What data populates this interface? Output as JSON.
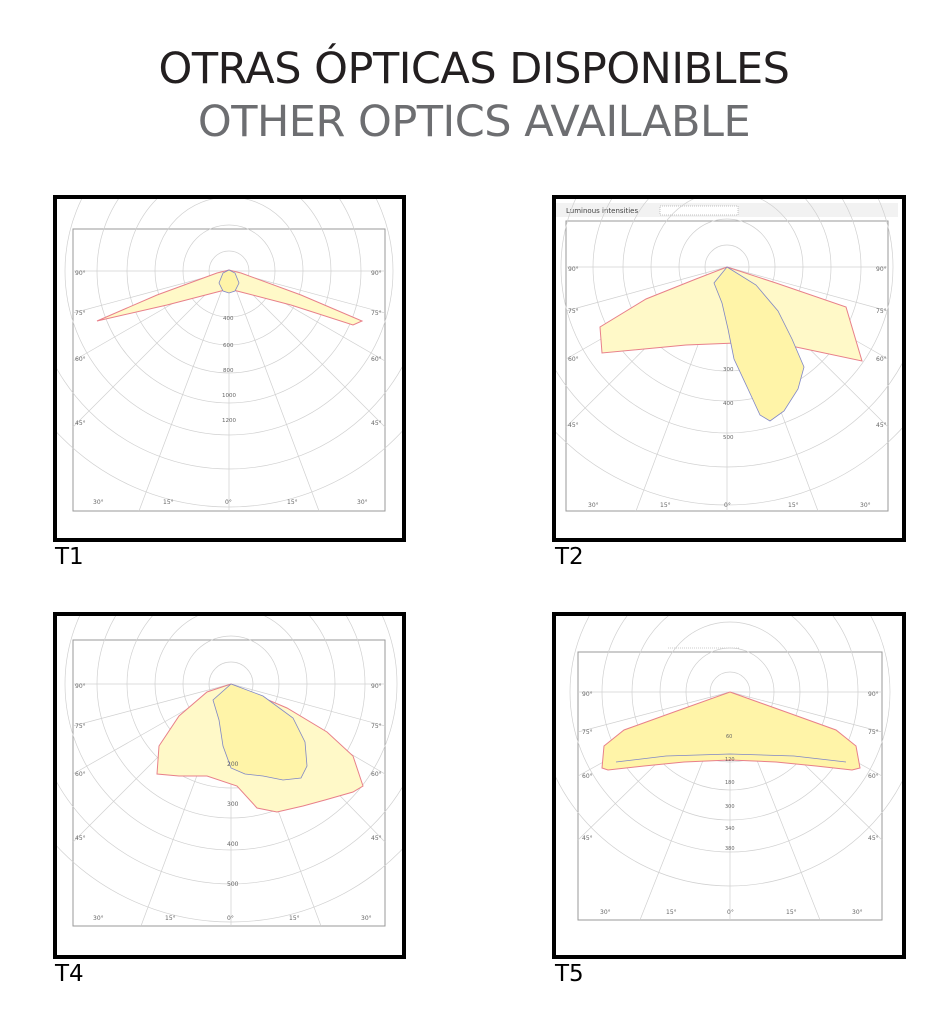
{
  "header": {
    "title_es": "OTRAS ÓPTICAS DISPONIBLES",
    "title_en": "OTHER OPTICS AVAILABLE"
  },
  "colors": {
    "fill": "#fff9c8",
    "fill_inner": "#fff4a8",
    "outline_a": "#e8808a",
    "outline_b": "#7f86c6",
    "grid": "#d0d0d0"
  },
  "panels": [
    {
      "caption": "T1",
      "header_text": "",
      "angle_labels": {
        "upper": "90°",
        "mid": "75°",
        "lower": "60°",
        "side": "45°"
      },
      "bottom_labels": [
        "30°",
        "15°",
        "0°",
        "15°",
        "30°"
      ],
      "ring_labels": [
        "400",
        "600",
        "800",
        "1000",
        "1200"
      ]
    },
    {
      "caption": "T2",
      "header_text": "Luminous intensities",
      "angle_labels": {
        "upper": "90°",
        "mid": "75°",
        "lower": "60°",
        "side": "45°"
      },
      "bottom_labels": [
        "30°",
        "15°",
        "0°",
        "15°",
        "30°"
      ],
      "ring_labels": [
        "300",
        "400",
        "500"
      ]
    },
    {
      "caption": "T4",
      "header_text": "",
      "angle_labels": {
        "upper": "90°",
        "mid": "75°",
        "lower": "60°",
        "side": "45°"
      },
      "bottom_labels": [
        "30°",
        "15°",
        "0°",
        "15°",
        "30°"
      ],
      "ring_labels": [
        "200",
        "300",
        "400",
        "500"
      ]
    },
    {
      "caption": "T5",
      "header_text": "",
      "angle_labels": {
        "upper": "90°",
        "mid": "75°",
        "lower": "60°",
        "side": "45°"
      },
      "bottom_labels": [
        "30°",
        "15°",
        "0°",
        "15°",
        "30°"
      ],
      "ring_labels": [
        "60",
        "120",
        "180",
        "300",
        "340",
        "380"
      ]
    }
  ]
}
